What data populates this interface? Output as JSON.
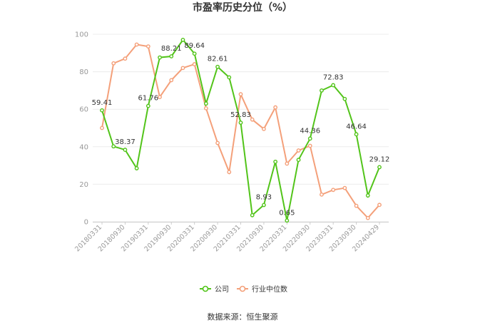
{
  "chart_data": {
    "type": "line",
    "title": "市盈率历史分位（%）",
    "ylim": [
      0,
      100
    ],
    "yticks": [
      0,
      20,
      40,
      60,
      80,
      100
    ],
    "grid": true,
    "legend_position": "bottom",
    "x_tick_labels": [
      "20180331",
      "20180930",
      "20190331",
      "20190930",
      "20200331",
      "20200930",
      "20210331",
      "20210930",
      "20220331",
      "20220930",
      "20230331",
      "20230930",
      "20240429"
    ],
    "x": [
      "20180331",
      "20180630",
      "20180930",
      "20181231",
      "20190331",
      "20190630",
      "20190930",
      "20191231",
      "20200331",
      "20200630",
      "20200930",
      "20201231",
      "20210331",
      "20210630",
      "20210930",
      "20211231",
      "20220331",
      "20220630",
      "20220930",
      "20221231",
      "20230331",
      "20230630",
      "20230930",
      "20231231",
      "20240429"
    ],
    "series": [
      {
        "name": "公司",
        "color": "#52c41a",
        "values": [
          59.41,
          40.2,
          38.37,
          28.5,
          61.76,
          87.6,
          88.21,
          97.0,
          89.64,
          63.0,
          82.61,
          77.0,
          52.83,
          3.5,
          8.93,
          32.0,
          0.65,
          33.0,
          44.36,
          70.0,
          72.83,
          65.5,
          46.64,
          14.0,
          29.12
        ],
        "labels": [
          "59.41",
          "",
          "38.37",
          "",
          "61.76",
          "",
          "88.21",
          "",
          "89.64",
          "",
          "82.61",
          "",
          "52.83",
          "",
          "8.93",
          "",
          "0.65",
          "",
          "44.36",
          "",
          "72.83",
          "",
          "46.64",
          "",
          "29.12"
        ]
      },
      {
        "name": "行业中位数",
        "color": "#f4a07a",
        "values": [
          50.0,
          84.5,
          87.0,
          94.5,
          93.5,
          66.5,
          75.5,
          82.0,
          84.0,
          60.5,
          42.0,
          26.5,
          68.0,
          54.5,
          49.5,
          61.0,
          31.0,
          38.0,
          40.5,
          14.5,
          17.0,
          18.0,
          8.5,
          2.0,
          9.0
        ]
      }
    ]
  },
  "source_text": "数据来源：恒生聚源"
}
